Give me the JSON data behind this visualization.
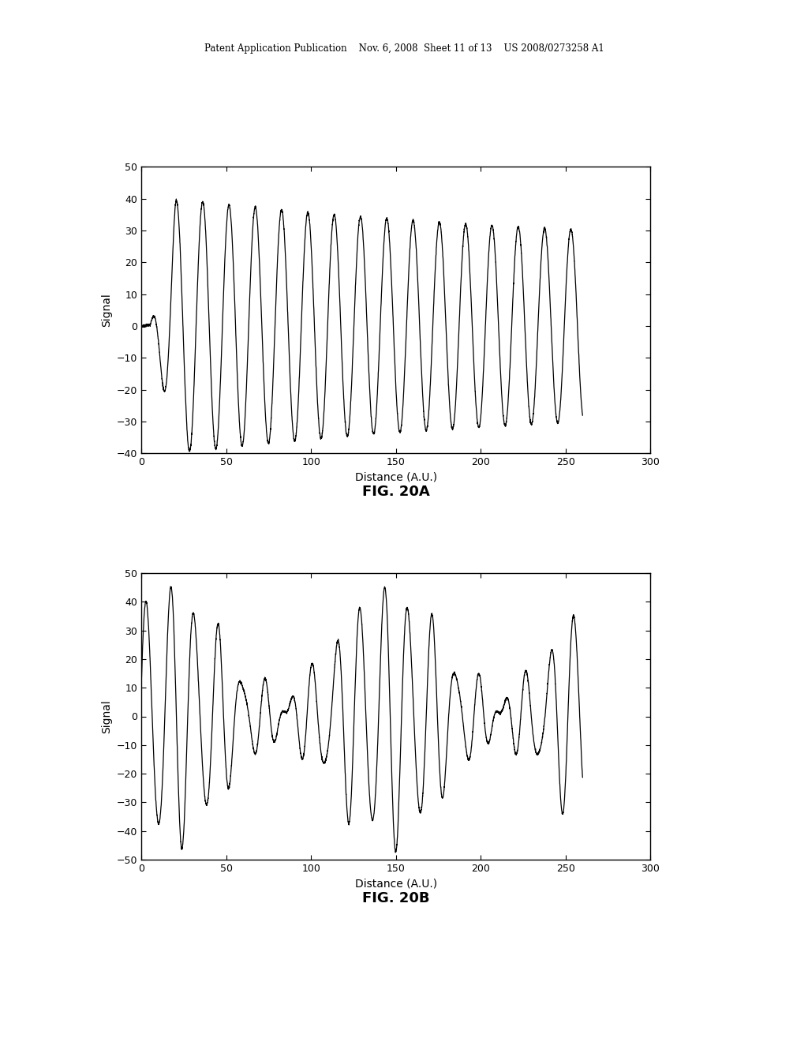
{
  "background_color": "#ffffff",
  "header_line1": "Patent Application Publication",
  "header_line2": "Nov. 6, 2008",
  "header_line3": "Sheet 11 of 13",
  "header_line4": "US 2008/0273258 A1",
  "fig20a": {
    "title": "FIG. 20A",
    "xlabel": "Distance (A.U.)",
    "ylabel": "Signal",
    "xlim": [
      0,
      300
    ],
    "ylim": [
      -40,
      50
    ],
    "yticks": [
      -40,
      -30,
      -20,
      -10,
      0,
      10,
      20,
      30,
      40,
      50
    ],
    "xticks": [
      0,
      50,
      100,
      150,
      200,
      250,
      300
    ]
  },
  "fig20b": {
    "title": "FIG. 20B",
    "xlabel": "Distance (A.U.)",
    "ylabel": "Signal",
    "xlim": [
      0,
      300
    ],
    "ylim": [
      -50,
      50
    ],
    "yticks": [
      -50,
      -40,
      -30,
      -20,
      -10,
      0,
      10,
      20,
      30,
      40,
      50
    ],
    "xticks": [
      0,
      50,
      100,
      150,
      200,
      250,
      300
    ]
  },
  "line_color": "#000000",
  "line_width": 0.9
}
